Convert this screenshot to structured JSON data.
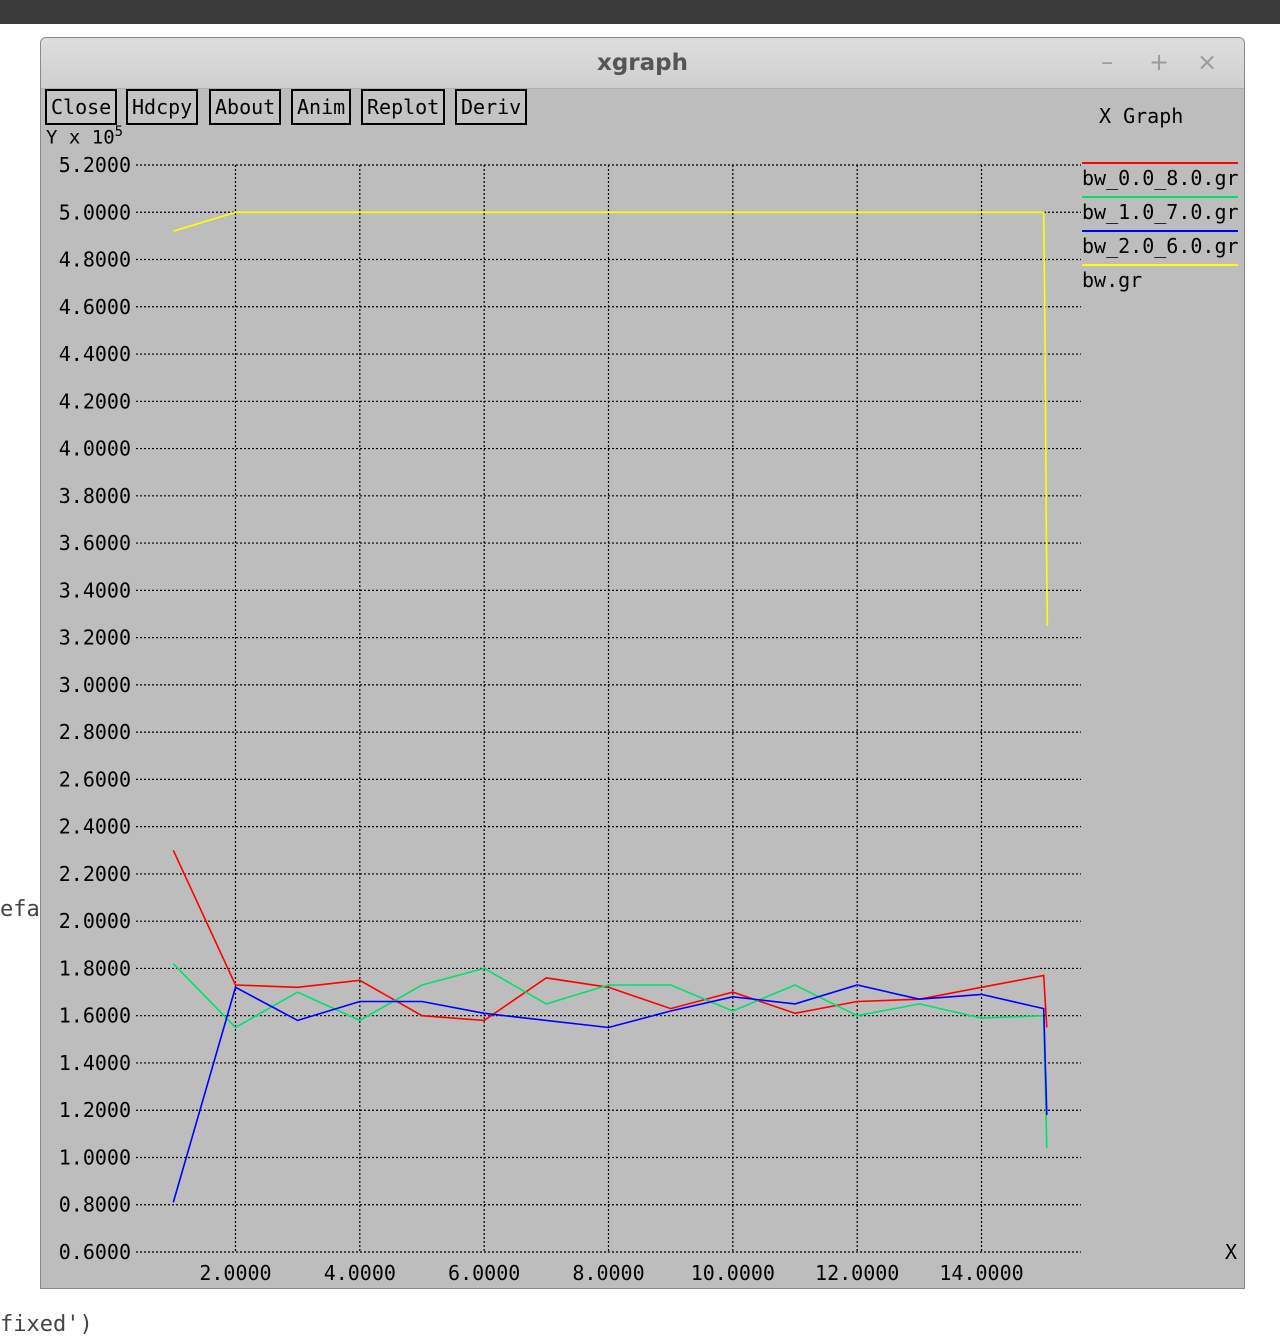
{
  "background": {
    "left_text": "efa",
    "bottom_text": "fixed')"
  },
  "window": {
    "title": "xgraph",
    "controls": {
      "minimize": "–",
      "maximize": "+",
      "close": "×"
    }
  },
  "toolbar": {
    "close_label": "Close",
    "hdcpy_label": "Hdcpy",
    "about_label": "About",
    "anim_label": "Anim",
    "replot_label": "Replot",
    "deriv_label": "Deriv"
  },
  "chart_data": {
    "type": "line",
    "title": "X Graph",
    "ylabel_unit": "Y x 10",
    "ylabel_exponent": "5",
    "xlabel": "X",
    "xlim": [
      0.4,
      15.6
    ],
    "ylim": [
      0.6,
      5.2
    ],
    "grid": true,
    "legend_position": "right",
    "x_ticks": [
      2,
      4,
      6,
      8,
      10,
      12,
      14
    ],
    "x_tick_labels": [
      "2.0000",
      "4.0000",
      "6.0000",
      "8.0000",
      "10.0000",
      "12.0000",
      "14.0000"
    ],
    "y_ticks": [
      0.6,
      0.8,
      1.0,
      1.2,
      1.4,
      1.6,
      1.8,
      2.0,
      2.2,
      2.4,
      2.6,
      2.8,
      3.0,
      3.2,
      3.4,
      3.6,
      3.8,
      4.0,
      4.2,
      4.4,
      4.6,
      4.8,
      5.0,
      5.2
    ],
    "y_tick_labels": [
      "0.6000",
      "0.8000",
      "1.0000",
      "1.2000",
      "1.4000",
      "1.6000",
      "1.8000",
      "2.0000",
      "2.2000",
      "2.4000",
      "2.6000",
      "2.8000",
      "3.0000",
      "3.2000",
      "3.4000",
      "3.6000",
      "3.8000",
      "4.0000",
      "4.2000",
      "4.4000",
      "4.6000",
      "4.8000",
      "5.0000",
      "5.2000"
    ],
    "series": [
      {
        "name": "bw_0.0_8.0.gr",
        "color": "#ff0000",
        "x": [
          1,
          2,
          3,
          4,
          5,
          6,
          7,
          8,
          9,
          10,
          11,
          12,
          13,
          14,
          15,
          15.05
        ],
        "y": [
          2.3,
          1.73,
          1.72,
          1.75,
          1.6,
          1.58,
          1.76,
          1.72,
          1.63,
          1.7,
          1.61,
          1.66,
          1.67,
          1.72,
          1.77,
          1.55
        ]
      },
      {
        "name": "bw_1.0_7.0.gr",
        "color": "#00e070",
        "x": [
          1,
          2,
          3,
          4,
          5,
          6,
          7,
          8,
          9,
          10,
          11,
          12,
          13,
          14,
          15,
          15.05
        ],
        "y": [
          1.82,
          1.55,
          1.7,
          1.58,
          1.73,
          1.8,
          1.65,
          1.73,
          1.73,
          1.62,
          1.73,
          1.6,
          1.65,
          1.59,
          1.6,
          1.04
        ]
      },
      {
        "name": "bw_2.0_6.0.gr",
        "color": "#0000ff",
        "x": [
          1,
          2,
          3,
          4,
          5,
          6,
          7,
          8,
          9,
          10,
          11,
          12,
          13,
          14,
          15,
          15.05
        ],
        "y": [
          0.81,
          1.72,
          1.58,
          1.66,
          1.66,
          1.61,
          1.58,
          1.55,
          1.62,
          1.68,
          1.65,
          1.73,
          1.67,
          1.69,
          1.63,
          1.18
        ]
      },
      {
        "name": "bw.gr",
        "color": "#ffff00",
        "x": [
          1,
          2,
          15,
          15.02,
          15.04,
          15.06
        ],
        "y": [
          4.92,
          5.0,
          5.0,
          4.55,
          3.7,
          3.25
        ]
      }
    ]
  }
}
